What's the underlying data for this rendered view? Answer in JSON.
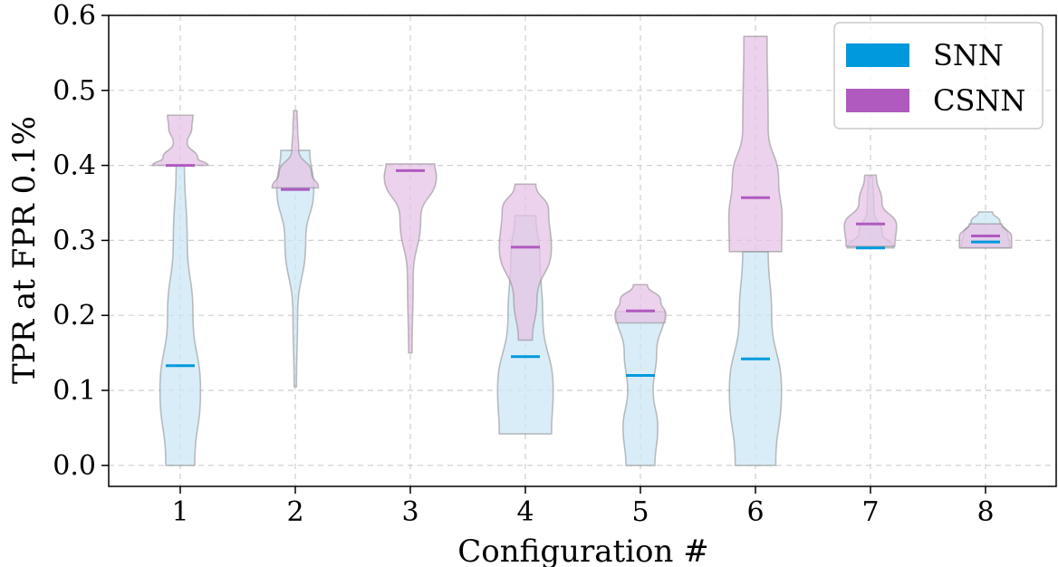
{
  "chart_data": {
    "type": "violin",
    "xlabel": "Configuration #",
    "ylabel": "TPR at FPR 0.1%",
    "categories": [
      "1",
      "2",
      "3",
      "4",
      "5",
      "6",
      "7",
      "8"
    ],
    "ylim": [
      -0.028,
      0.6
    ],
    "yticks": [
      "0.0",
      "0.1",
      "0.2",
      "0.3",
      "0.4",
      "0.5",
      "0.6"
    ],
    "grid": true,
    "legend": {
      "placement": "top-right",
      "entries": [
        {
          "label": "SNN",
          "color": "#0099dd"
        },
        {
          "label": "CSNN",
          "color": "#b05ac0"
        }
      ]
    },
    "series": [
      {
        "name": "SNN",
        "color": "#0099dd",
        "fill": "#cce7f5",
        "violins": [
          {
            "config": 1,
            "min": 0.0,
            "max": 0.4,
            "mean": 0.133,
            "profile": [
              [
                0.0,
                0.25
              ],
              [
                0.1,
                0.35
              ],
              [
                0.2,
                0.22
              ],
              [
                0.3,
                0.12
              ],
              [
                0.4,
                0.07
              ]
            ]
          },
          {
            "config": 2,
            "min": 0.105,
            "max": 0.42,
            "mean": 0.368,
            "profile": [
              [
                0.105,
                0.02
              ],
              [
                0.2,
                0.04
              ],
              [
                0.3,
                0.18
              ],
              [
                0.37,
                0.32
              ],
              [
                0.42,
                0.25
              ]
            ]
          },
          {
            "config": 4,
            "min": 0.042,
            "max": 0.333,
            "mean": 0.145,
            "profile": [
              [
                0.042,
                0.45
              ],
              [
                0.1,
                0.48
              ],
              [
                0.2,
                0.3
              ],
              [
                0.28,
                0.25
              ],
              [
                0.333,
                0.18
              ]
            ]
          },
          {
            "config": 5,
            "min": 0.0,
            "max": 0.205,
            "mean": 0.12,
            "profile": [
              [
                0.0,
                0.25
              ],
              [
                0.05,
                0.3
              ],
              [
                0.1,
                0.22
              ],
              [
                0.15,
                0.28
              ],
              [
                0.205,
                0.42
              ]
            ]
          },
          {
            "config": 6,
            "min": 0.0,
            "max": 0.285,
            "mean": 0.142,
            "profile": [
              [
                0.0,
                0.35
              ],
              [
                0.1,
                0.45
              ],
              [
                0.2,
                0.28
              ],
              [
                0.285,
                0.22
              ]
            ]
          },
          {
            "config": 7,
            "min": 0.29,
            "max": 0.385,
            "mean": 0.29,
            "profile": [
              [
                0.29,
                0.4
              ],
              [
                0.31,
                0.2
              ],
              [
                0.34,
                0.06
              ],
              [
                0.385,
                0.04
              ]
            ]
          },
          {
            "config": 8,
            "min": 0.29,
            "max": 0.338,
            "mean": 0.298,
            "profile": [
              [
                0.29,
                0.42
              ],
              [
                0.31,
                0.38
              ],
              [
                0.325,
                0.25
              ],
              [
                0.338,
                0.12
              ]
            ]
          }
        ]
      },
      {
        "name": "CSNN",
        "color": "#b05ac0",
        "fill": "#e6c3e6",
        "violins": [
          {
            "config": 1,
            "min": 0.4,
            "max": 0.467,
            "mean": 0.4,
            "profile": [
              [
                0.4,
                0.48
              ],
              [
                0.41,
                0.3
              ],
              [
                0.43,
                0.12
              ],
              [
                0.45,
                0.2
              ],
              [
                0.467,
                0.22
              ]
            ]
          },
          {
            "config": 2,
            "min": 0.37,
            "max": 0.473,
            "mean": 0.368,
            "profile": [
              [
                0.37,
                0.4
              ],
              [
                0.39,
                0.28
              ],
              [
                0.42,
                0.06
              ],
              [
                0.45,
                0.04
              ],
              [
                0.473,
                0.03
              ]
            ]
          },
          {
            "config": 3,
            "min": 0.15,
            "max": 0.402,
            "mean": 0.393,
            "profile": [
              [
                0.15,
                0.03
              ],
              [
                0.25,
                0.05
              ],
              [
                0.33,
                0.18
              ],
              [
                0.385,
                0.45
              ],
              [
                0.402,
                0.42
              ]
            ]
          },
          {
            "config": 4,
            "min": 0.167,
            "max": 0.375,
            "mean": 0.291,
            "profile": [
              [
                0.167,
                0.12
              ],
              [
                0.22,
                0.2
              ],
              [
                0.29,
                0.45
              ],
              [
                0.34,
                0.4
              ],
              [
                0.375,
                0.18
              ]
            ]
          },
          {
            "config": 5,
            "min": 0.19,
            "max": 0.241,
            "mean": 0.206,
            "profile": [
              [
                0.19,
                0.42
              ],
              [
                0.2,
                0.44
              ],
              [
                0.22,
                0.35
              ],
              [
                0.241,
                0.12
              ]
            ]
          },
          {
            "config": 6,
            "min": 0.285,
            "max": 0.572,
            "mean": 0.357,
            "profile": [
              [
                0.285,
                0.45
              ],
              [
                0.33,
                0.46
              ],
              [
                0.38,
                0.4
              ],
              [
                0.45,
                0.22
              ],
              [
                0.572,
                0.2
              ]
            ]
          },
          {
            "config": 7,
            "min": 0.292,
            "max": 0.387,
            "mean": 0.322,
            "profile": [
              [
                0.292,
                0.42
              ],
              [
                0.32,
                0.45
              ],
              [
                0.35,
                0.2
              ],
              [
                0.387,
                0.1
              ]
            ]
          },
          {
            "config": 8,
            "min": 0.29,
            "max": 0.322,
            "mean": 0.306,
            "profile": [
              [
                0.29,
                0.45
              ],
              [
                0.305,
                0.45
              ],
              [
                0.322,
                0.28
              ]
            ]
          }
        ]
      }
    ]
  }
}
